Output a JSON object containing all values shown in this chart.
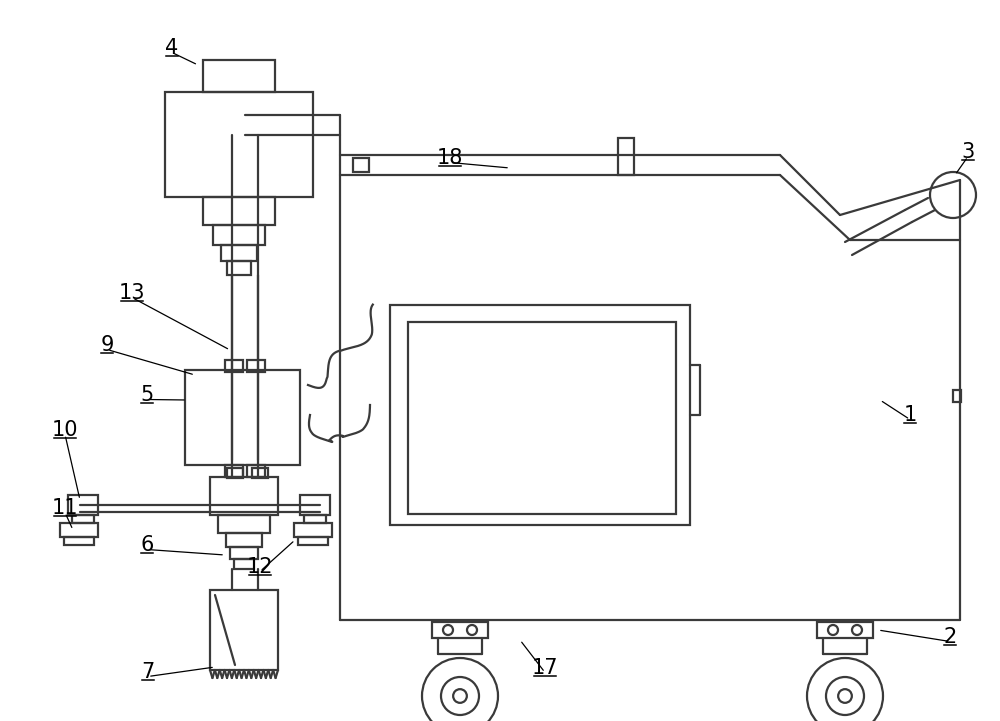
{
  "bg_color": "#ffffff",
  "line_color": "#3a3a3a",
  "fig_width": 10.0,
  "fig_height": 7.21,
  "dpi": 100
}
